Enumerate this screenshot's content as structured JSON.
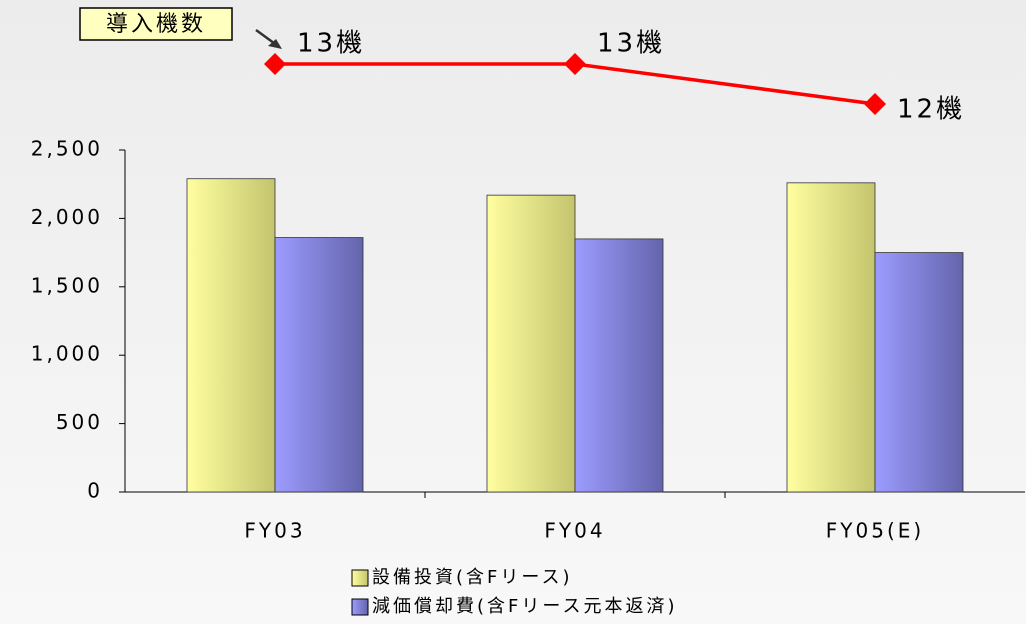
{
  "chart_data": {
    "type": "bar",
    "annotation": "導入機数",
    "categories": [
      "FY03",
      "FY04",
      "FY05(E)"
    ],
    "series": [
      {
        "name": "設備投資(含Fリース)",
        "color": "#ffff99",
        "values": [
          2290,
          2170,
          2260
        ]
      },
      {
        "name": "減価償却費(含Fリース元本返済)",
        "color": "#9999ff",
        "values": [
          1860,
          1850,
          1750
        ]
      }
    ],
    "line_series": {
      "type": "line",
      "color": "#ff0000",
      "values": [
        13,
        13,
        12
      ],
      "value_labels": [
        "13機",
        "13機",
        "12機"
      ]
    },
    "ylim": [
      0,
      2500
    ],
    "yticks": [
      0,
      500,
      {
        "value": 1000,
        "label": "1,000"
      },
      {
        "value": 1500,
        "label": "1,500"
      },
      {
        "value": 2000,
        "label": "2,000"
      },
      {
        "value": 2500,
        "label": "2,500"
      }
    ],
    "legend": "bottom"
  }
}
